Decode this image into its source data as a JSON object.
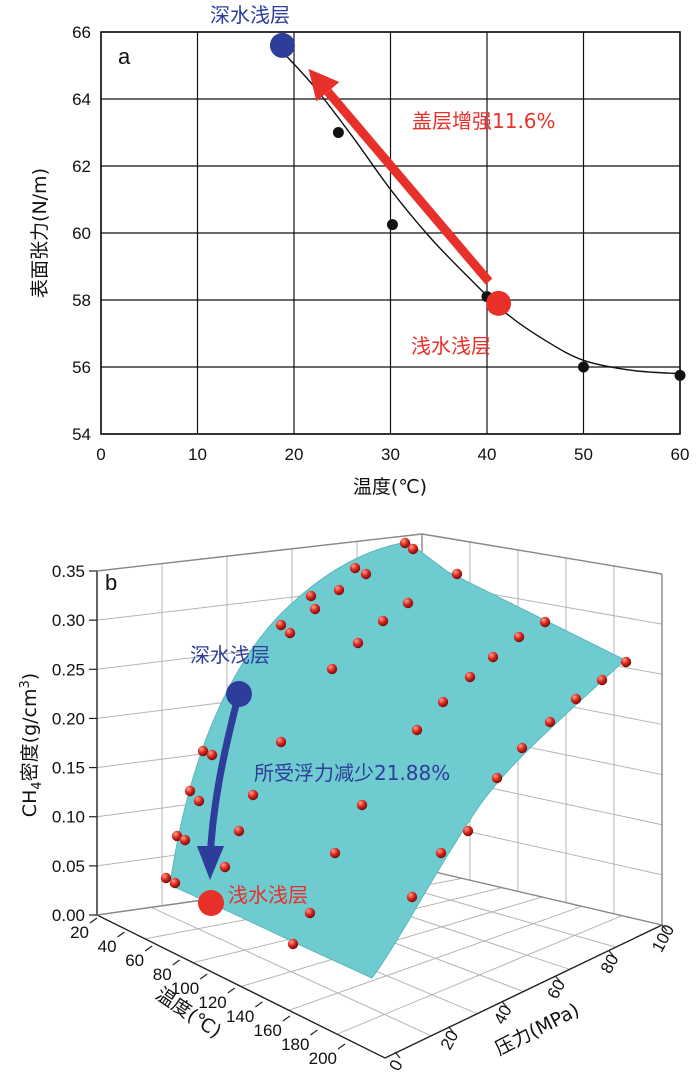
{
  "chart_data": [
    {
      "type": "scatter",
      "panel_label": "a",
      "xlabel": "温度(℃)",
      "ylabel": "表面张力(N/m)",
      "xlim": [
        0,
        60
      ],
      "ylim": [
        54,
        66
      ],
      "x_ticks": [
        "0",
        "10",
        "20",
        "30",
        "40",
        "50",
        "60"
      ],
      "y_ticks": [
        "54",
        "56",
        "58",
        "60",
        "62",
        "64",
        "66"
      ],
      "grid": true,
      "series": [
        {
          "x": [
            24.6,
            30.2,
            40.0,
            50.0,
            60.0
          ],
          "y": [
            63.0,
            60.25,
            58.1,
            56.0,
            55.75
          ],
          "color": "#111111"
        }
      ],
      "fit_curve": {
        "x": [
          18.5,
          22,
          26,
          30,
          34,
          38,
          42,
          46,
          50,
          55,
          60
        ],
        "y": [
          65.5,
          64.4,
          62.9,
          61.3,
          59.9,
          58.7,
          57.6,
          56.8,
          56.2,
          55.9,
          55.8
        ],
        "color": "#111111"
      },
      "highlights": [
        {
          "label": "深水浅层",
          "x": 18.8,
          "y": 65.6,
          "color": "#2e3d99"
        },
        {
          "label": "浅水浅层",
          "x": 41.2,
          "y": 57.9,
          "color": "#e8302a"
        }
      ],
      "arrow": {
        "from": [
          40.2,
          58.55
        ],
        "to": [
          21.5,
          64.9
        ],
        "color": "#e8302a"
      },
      "annotation": {
        "text": "盖层增强11.6%",
        "color": "#e8302a"
      }
    },
    {
      "type": "scatter",
      "subtype": "3d-surface",
      "panel_label": "b",
      "zlabel_main": "CH",
      "zlabel_sub": "4",
      "zlabel_rest": "密度(g/cm",
      "zlabel_sup": "3",
      "zlabel_end": ")",
      "z_ticks": [
        "0.00",
        "0.05",
        "0.10",
        "0.15",
        "0.20",
        "0.25",
        "0.30",
        "0.35"
      ],
      "temp_label": "温度(℃)",
      "temp_ticks": [
        "20",
        "40",
        "60",
        "80",
        "100",
        "120",
        "140",
        "160",
        "180",
        "200"
      ],
      "pressure_label": "压力(MPa)",
      "pressure_ticks": [
        "0",
        "20",
        "40",
        "60",
        "80",
        "100"
      ],
      "surface_color": "#6ecbd0",
      "point_color": "#d7261e",
      "highlights": [
        {
          "label": "深水浅层",
          "color": "#2e3d99"
        },
        {
          "label": "浅水浅层",
          "color": "#e8302a"
        }
      ],
      "annotation": {
        "text": "所受浮力减少21.88%",
        "color": "#2e3d99"
      }
    }
  ]
}
